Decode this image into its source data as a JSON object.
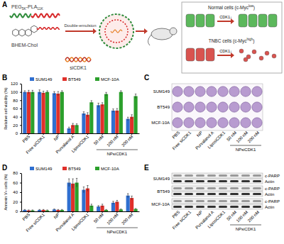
{
  "panel_labels": [
    "A",
    "B",
    "C",
    "D",
    "E"
  ],
  "schematic": {
    "polymer": [
      {
        "text": "PEG"
      },
      {
        "text": "5K",
        "sub": true
      },
      {
        "text": "-PLA"
      },
      {
        "text": "11K",
        "sub": true
      }
    ],
    "lipid": "BHEM-Chol",
    "sirna": "siCDK1",
    "process": "Double-emulsion",
    "normal_cells": [
      {
        "text": "Normal cells (c-Myc"
      },
      {
        "text": "low",
        "sup": true
      },
      {
        "text": ")"
      }
    ],
    "tnbc_cells": [
      {
        "text": "TNBC cells (c-Myc"
      },
      {
        "text": "high",
        "sup": true
      },
      {
        "text": ")"
      }
    ],
    "effect_labels": [
      "CDK1↓",
      "CDK1↓"
    ]
  },
  "chart_data": [
    {
      "type": "bar",
      "ylabel": "Relative cell viability (%)",
      "categories": [
        "PBS",
        "Free siCDK1",
        "NP",
        "Purvalanol A",
        "LiposiCDK1",
        "50 nM",
        "100 nM",
        "200 nM"
      ],
      "series": [
        {
          "name": "SUM149",
          "color": "#2f6fd0",
          "values": [
            100,
            100,
            97,
            12,
            48,
            68,
            55,
            35
          ],
          "errors": [
            3,
            5,
            4,
            3,
            4,
            5,
            4,
            4
          ]
        },
        {
          "name": "BT549",
          "color": "#e0302a",
          "values": [
            100,
            98,
            96,
            20,
            45,
            70,
            55,
            40
          ],
          "errors": [
            4,
            4,
            5,
            4,
            5,
            4,
            5,
            5
          ]
        },
        {
          "name": "MCF-10A",
          "color": "#2ca02c",
          "values": [
            100,
            100,
            100,
            20,
            75,
            95,
            100,
            90
          ],
          "errors": [
            4,
            3,
            3,
            3,
            4,
            4,
            3,
            5
          ]
        }
      ],
      "ylim": [
        0,
        120
      ],
      "yticks": [
        0,
        20,
        40,
        60,
        80,
        100,
        120
      ],
      "legend": "top",
      "annotations": [
        "NPsiCDK1"
      ]
    },
    {
      "type": "bar",
      "ylabel": "Annexin V+ cells (%)",
      "categories": [
        "PBS",
        "Free siCDK1",
        "NP",
        "Purvalanol A",
        "LiposiCDK1",
        "50 nM",
        "100 nM",
        "200 nM"
      ],
      "series": [
        {
          "name": "SUM149",
          "color": "#2f6fd0",
          "values": [
            3,
            3,
            4,
            60,
            45,
            10,
            18,
            33
          ],
          "errors": [
            1,
            1,
            1,
            8,
            6,
            2,
            3,
            4
          ]
        },
        {
          "name": "BT549",
          "color": "#e0302a",
          "values": [
            2,
            3,
            3,
            58,
            48,
            12,
            20,
            28
          ],
          "errors": [
            1,
            1,
            1,
            10,
            6,
            3,
            3,
            4
          ]
        },
        {
          "name": "MCF-10A",
          "color": "#2ca02c",
          "values": [
            2,
            2,
            3,
            60,
            12,
            3,
            4,
            5
          ],
          "errors": [
            1,
            1,
            1,
            9,
            3,
            1,
            1,
            1
          ]
        }
      ],
      "ylim": [
        0,
        80
      ],
      "yticks": [
        0,
        20,
        40,
        60,
        80
      ],
      "legend": "top",
      "annotations": [
        "NPsiCDK1"
      ]
    }
  ],
  "colony_assay": {
    "rows": [
      "SUM149",
      "BT549",
      "MCF-10A"
    ],
    "columns": [
      "PBS",
      "Free siCDK1",
      "NP",
      "Purvalanol A",
      "LiposiCDK1",
      "50 nM",
      "100 nM",
      "200 nM"
    ],
    "group_label": "NPsiCDK1"
  },
  "western_blot": {
    "cell_lines": [
      "SUM149",
      "BT549",
      "MCF-10A"
    ],
    "bands": [
      "c-PARP",
      "Actin"
    ],
    "columns": [
      "PBS",
      "Free siCDK1",
      "NP",
      "Purvalanol A",
      "LiposiCDK1",
      "50 nM",
      "100 nM",
      "200 nM"
    ],
    "group_label": "NPsiCDK1"
  }
}
